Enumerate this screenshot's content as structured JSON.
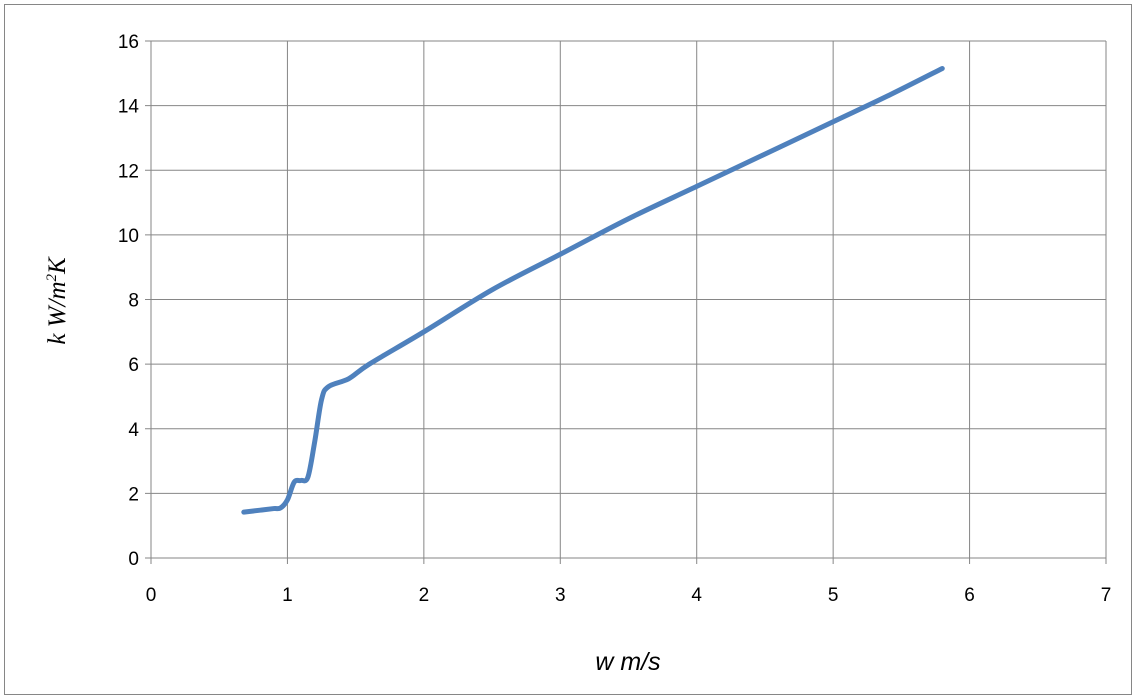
{
  "chart_data": {
    "type": "line",
    "title": "",
    "xlabel": "w m/s",
    "ylabel_parts": {
      "base": "k W/m",
      "sup": "2",
      "tail": "K"
    },
    "xlim": [
      0,
      7
    ],
    "ylim": [
      0,
      16
    ],
    "x_ticks": [
      0,
      1,
      2,
      3,
      4,
      5,
      6,
      7
    ],
    "y_ticks": [
      0,
      2,
      4,
      6,
      8,
      10,
      12,
      14,
      16
    ],
    "grid": true,
    "legend": "none",
    "series": [
      {
        "color": "#4f81bd",
        "points": [
          [
            0.68,
            1.42
          ],
          [
            0.8,
            1.48
          ],
          [
            0.9,
            1.53
          ],
          [
            0.95,
            1.55
          ],
          [
            1.0,
            1.8
          ],
          [
            1.05,
            2.35
          ],
          [
            1.1,
            2.4
          ],
          [
            1.15,
            2.5
          ],
          [
            1.2,
            3.6
          ],
          [
            1.25,
            4.9
          ],
          [
            1.3,
            5.3
          ],
          [
            1.45,
            5.55
          ],
          [
            1.6,
            6.0
          ],
          [
            2.0,
            7.0
          ],
          [
            2.5,
            8.3
          ],
          [
            3.0,
            9.4
          ],
          [
            3.5,
            10.5
          ],
          [
            4.0,
            11.5
          ],
          [
            4.5,
            12.5
          ],
          [
            5.0,
            13.5
          ],
          [
            5.4,
            14.3
          ],
          [
            5.8,
            15.15
          ]
        ]
      }
    ]
  }
}
